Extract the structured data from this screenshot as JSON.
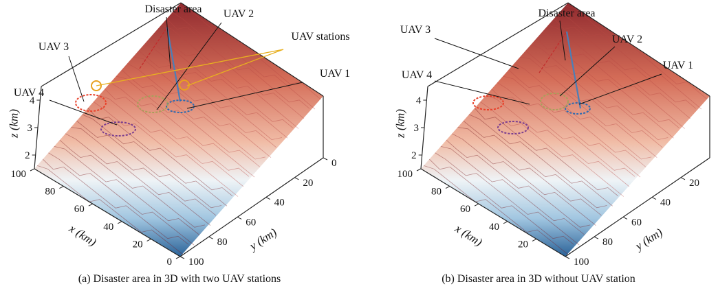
{
  "chart_data": [
    {
      "type": "surface3d",
      "caption": "(a) Disaster area in 3D with two UAV stations",
      "xlabel": "x (km)",
      "ylabel": "y (km)",
      "zlabel": "z (km)",
      "xticks": [
        0,
        20,
        40,
        60,
        80,
        100
      ],
      "yticks": [
        0,
        20,
        40,
        60,
        80,
        100
      ],
      "zticks": [
        2,
        3,
        4
      ],
      "xlim": [
        0,
        100
      ],
      "ylim": [
        0,
        100
      ],
      "zlim": [
        1.5,
        4.5
      ],
      "colormap": "blue-white-red",
      "annotations": [
        {
          "text": "Disaster area"
        },
        {
          "text": "UAV 2"
        },
        {
          "text": "UAV stations"
        },
        {
          "text": "UAV 3"
        },
        {
          "text": "UAV 1"
        },
        {
          "text": "UAV 4"
        }
      ],
      "series": [
        {
          "name": "UAV 1",
          "color": "#2e6bb0"
        },
        {
          "name": "UAV 2",
          "color": "#a8a05a"
        },
        {
          "name": "UAV 3",
          "color": "#e8402a"
        },
        {
          "name": "UAV 4",
          "color": "#7b3e8f"
        }
      ]
    },
    {
      "type": "surface3d",
      "caption": "(b) Disaster area in 3D without UAV station",
      "xlabel": "x (km)",
      "ylabel": "y (km)",
      "zlabel": "z (km)",
      "xticks": [
        20,
        40,
        60,
        80,
        100
      ],
      "yticks": [
        20,
        40,
        60,
        80,
        100
      ],
      "zticks": [
        2,
        3,
        4
      ],
      "xlim": [
        0,
        100
      ],
      "ylim": [
        0,
        100
      ],
      "zlim": [
        1.5,
        4.5
      ],
      "colormap": "blue-white-red",
      "annotations": [
        {
          "text": "Disaster area"
        },
        {
          "text": "UAV 3"
        },
        {
          "text": "UAV 2"
        },
        {
          "text": "UAV 1"
        },
        {
          "text": "UAV 4"
        }
      ],
      "series": [
        {
          "name": "UAV 1",
          "color": "#2e6bb0"
        },
        {
          "name": "UAV 2",
          "color": "#a8a05a"
        },
        {
          "name": "UAV 3",
          "color": "#e8402a"
        },
        {
          "name": "UAV 4",
          "color": "#7b3e8f"
        }
      ]
    }
  ]
}
